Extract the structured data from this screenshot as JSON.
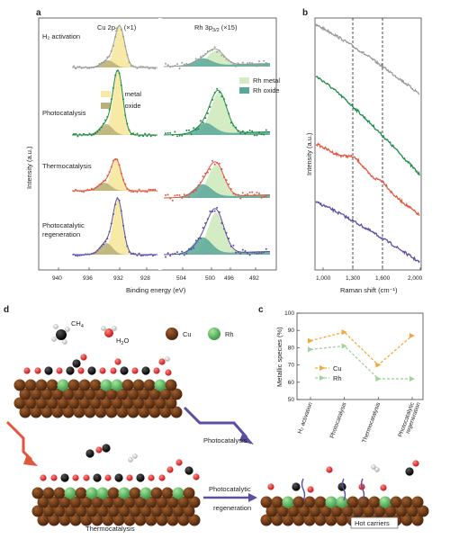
{
  "panel_labels": {
    "a": "a",
    "b": "b",
    "c": "c",
    "d": "d"
  },
  "panel_a": {
    "cu_header": "Cu 2p",
    "cu_header_sub": "3/2",
    "cu_header_mult": " (×1)",
    "rh_header": "Rh 3p",
    "rh_header_sub": "3/2",
    "rh_header_mult": " (×15)",
    "row_labels": [
      "H₂ activation",
      "Photocatalysis",
      "Thermocatalysis",
      "Photocatalytic",
      "regeneration"
    ],
    "ylabel": "Intensity (a.u.)",
    "xlabel": "Binding energy (eV)",
    "cu_ticks": [
      "940",
      "936",
      "932",
      "928"
    ],
    "rh_ticks": [
      "504",
      "500",
      "496",
      "492"
    ],
    "legend_cu": [
      "Cu metal",
      "Cu oxide"
    ],
    "legend_rh": [
      "Rh metal",
      "Rh oxide"
    ],
    "colors": {
      "h2": "#9a9a9a",
      "photo": "#1e8a46",
      "thermo": "#e0573e",
      "regen": "#5a4fa0",
      "cu_metal": "#f7e9a6",
      "cu_oxide": "#b9b27a",
      "rh_metal": "#d4ecc4",
      "rh_oxide": "#5aa79a"
    }
  },
  "panel_b": {
    "ylabel": "Intensity (a.u.)",
    "xlabel": "Raman shift (cm⁻¹)",
    "ticks": [
      "1,000",
      "1,300",
      "1,600",
      "2,000"
    ]
  },
  "chart_data": {
    "type": "line",
    "categories": [
      "H₂ activation",
      "Photocatalysis",
      "Thermocatalysis",
      "Photocatalytic regeneration"
    ],
    "series": [
      {
        "name": "Cu",
        "values": [
          84,
          89,
          70,
          87
        ],
        "color": "#f3a93a"
      },
      {
        "name": "Rh",
        "values": [
          79,
          81,
          62,
          62
        ],
        "color": "#9fd39a"
      }
    ],
    "ylabel": "Metallic species (%)",
    "ylim": [
      50,
      100
    ],
    "yticks": [
      "50",
      "60",
      "70",
      "80",
      "90",
      "100"
    ],
    "legend_position": "center"
  },
  "panel_d": {
    "ch4": "CH",
    "ch4_sub": "4",
    "h2o": "H",
    "h2o_sub": "2",
    "h2o_end": "O",
    "cu": "Cu",
    "rh": "Rh",
    "photocatalysis": "Photocatalysis",
    "thermocatalysis": "Thermocatalysis",
    "regen_line1": "Photocatalytic",
    "regen_line2": "regeneration",
    "hot_carriers": "Hot carriers"
  }
}
